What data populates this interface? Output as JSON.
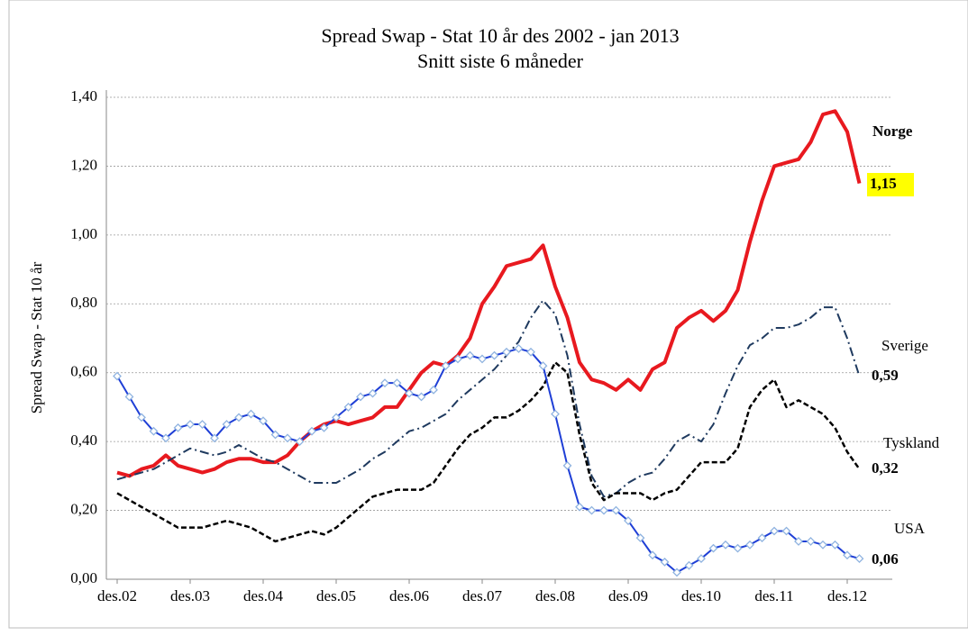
{
  "chart_data": {
    "type": "line",
    "title": "Spread Swap - Stat 10 år   des 2002 - jan 2013",
    "subtitle": "Snitt siste 6 måneder",
    "y_label": "Spread Swap - Stat 10 år",
    "categories": [
      "des.02",
      null,
      null,
      null,
      null,
      null,
      "des.03",
      null,
      null,
      null,
      null,
      null,
      "des.04",
      null,
      null,
      null,
      null,
      null,
      "des.05",
      null,
      null,
      null,
      null,
      null,
      "des.06",
      null,
      null,
      null,
      null,
      null,
      "des.07",
      null,
      null,
      null,
      null,
      null,
      "des.08",
      null,
      null,
      null,
      null,
      null,
      "des.09",
      null,
      null,
      null,
      null,
      null,
      "des.10",
      null,
      null,
      null,
      null,
      null,
      "des.11",
      null,
      null,
      null,
      null,
      null,
      "des.12",
      null
    ],
    "ylim": [
      0,
      1.4
    ],
    "yticks": [
      {
        "value": 0,
        "label": "0,00"
      },
      {
        "value": 0.2,
        "label": "0,20"
      },
      {
        "value": 0.4,
        "label": "0,40"
      },
      {
        "value": 0.6,
        "label": "0,60"
      },
      {
        "value": 0.8,
        "label": "0,80"
      },
      {
        "value": 1.0,
        "label": "1,00"
      },
      {
        "value": 1.2,
        "label": "1,20"
      },
      {
        "value": 1.4,
        "label": "1,40"
      }
    ],
    "grid": true,
    "series": [
      {
        "name": "Norge",
        "color": "#e8191f",
        "style": "solid",
        "values": [
          0.31,
          0.3,
          0.32,
          0.33,
          0.36,
          0.33,
          0.32,
          0.31,
          0.32,
          0.34,
          0.35,
          0.35,
          0.34,
          0.34,
          0.36,
          0.4,
          0.43,
          0.45,
          0.46,
          0.45,
          0.46,
          0.47,
          0.5,
          0.5,
          0.55,
          0.6,
          0.63,
          0.62,
          0.65,
          0.7,
          0.8,
          0.85,
          0.91,
          0.92,
          0.93,
          0.97,
          0.85,
          0.76,
          0.63,
          0.58,
          0.57,
          0.55,
          0.58,
          0.55,
          0.61,
          0.63,
          0.73,
          0.76,
          0.78,
          0.75,
          0.78,
          0.84,
          0.98,
          1.1,
          1.2,
          1.21,
          1.22,
          1.27,
          1.35,
          1.36,
          1.3,
          1.15
        ],
        "value_labels": [
          null,
          null,
          null,
          null,
          null,
          null,
          null,
          null,
          null,
          null,
          null,
          null,
          null,
          null,
          null,
          null,
          null,
          null,
          null,
          null,
          null,
          null,
          null,
          null,
          null,
          null,
          null,
          null,
          null,
          null,
          null,
          null,
          null,
          null,
          null,
          null,
          null,
          null,
          null,
          null,
          null,
          null,
          null,
          null,
          null,
          null,
          null,
          null,
          null,
          null,
          null,
          null,
          null,
          null,
          null,
          null,
          null,
          null,
          null,
          null,
          null,
          "1,15"
        ]
      },
      {
        "name": "Sverige",
        "color": "#1f3a5f",
        "style": "dashdot",
        "values": [
          0.29,
          0.3,
          0.31,
          0.32,
          0.34,
          0.36,
          0.38,
          0.37,
          0.36,
          0.37,
          0.39,
          0.37,
          0.35,
          0.34,
          0.32,
          0.3,
          0.28,
          0.28,
          0.28,
          0.3,
          0.32,
          0.35,
          0.37,
          0.4,
          0.43,
          0.44,
          0.46,
          0.48,
          0.52,
          0.55,
          0.58,
          0.61,
          0.65,
          0.69,
          0.76,
          0.81,
          0.77,
          0.65,
          0.45,
          0.3,
          0.24,
          0.25,
          0.28,
          0.3,
          0.31,
          0.35,
          0.4,
          0.42,
          0.4,
          0.45,
          0.54,
          0.62,
          0.68,
          0.7,
          0.73,
          0.73,
          0.74,
          0.76,
          0.79,
          0.79,
          0.7,
          0.59
        ],
        "value_labels": [
          null,
          null,
          null,
          null,
          null,
          null,
          null,
          null,
          null,
          null,
          null,
          null,
          null,
          null,
          null,
          null,
          null,
          null,
          null,
          null,
          null,
          null,
          null,
          null,
          null,
          null,
          null,
          null,
          null,
          null,
          null,
          null,
          null,
          null,
          null,
          null,
          null,
          null,
          null,
          null,
          null,
          null,
          null,
          null,
          null,
          null,
          null,
          null,
          null,
          null,
          null,
          null,
          null,
          null,
          null,
          null,
          null,
          null,
          null,
          null,
          null,
          "0,59"
        ]
      },
      {
        "name": "Tyskland",
        "color": "#000000",
        "style": "dashed",
        "values": [
          0.25,
          0.23,
          0.21,
          0.19,
          0.17,
          0.15,
          0.15,
          0.15,
          0.16,
          0.17,
          0.16,
          0.15,
          0.13,
          0.11,
          0.12,
          0.13,
          0.14,
          0.13,
          0.15,
          0.18,
          0.21,
          0.24,
          0.25,
          0.26,
          0.26,
          0.26,
          0.28,
          0.33,
          0.38,
          0.42,
          0.44,
          0.47,
          0.47,
          0.49,
          0.52,
          0.56,
          0.63,
          0.6,
          0.42,
          0.28,
          0.23,
          0.25,
          0.25,
          0.25,
          0.23,
          0.25,
          0.26,
          0.3,
          0.34,
          0.34,
          0.34,
          0.38,
          0.5,
          0.55,
          0.58,
          0.5,
          0.52,
          0.5,
          0.48,
          0.44,
          0.37,
          0.32
        ],
        "value_labels": [
          null,
          null,
          null,
          null,
          null,
          null,
          null,
          null,
          null,
          null,
          null,
          null,
          null,
          null,
          null,
          null,
          null,
          null,
          null,
          null,
          null,
          null,
          null,
          null,
          null,
          null,
          null,
          null,
          null,
          null,
          null,
          null,
          null,
          null,
          null,
          null,
          null,
          null,
          null,
          null,
          null,
          null,
          null,
          null,
          null,
          null,
          null,
          null,
          null,
          null,
          null,
          null,
          null,
          null,
          null,
          null,
          null,
          null,
          null,
          null,
          null,
          "0,32"
        ]
      },
      {
        "name": "USA",
        "color": "#1f3fd6",
        "style": "solid",
        "marker": "diamond",
        "values": [
          0.59,
          0.53,
          0.47,
          0.43,
          0.41,
          0.44,
          0.45,
          0.45,
          0.41,
          0.45,
          0.47,
          0.48,
          0.46,
          0.42,
          0.41,
          0.4,
          0.43,
          0.44,
          0.47,
          0.5,
          0.53,
          0.54,
          0.57,
          0.57,
          0.54,
          0.53,
          0.55,
          0.62,
          0.64,
          0.65,
          0.64,
          0.65,
          0.66,
          0.67,
          0.66,
          0.62,
          0.48,
          0.33,
          0.21,
          0.2,
          0.2,
          0.2,
          0.17,
          0.12,
          0.07,
          0.05,
          0.02,
          0.04,
          0.06,
          0.09,
          0.1,
          0.09,
          0.1,
          0.12,
          0.14,
          0.14,
          0.11,
          0.11,
          0.1,
          0.1,
          0.07,
          0.06
        ],
        "value_labels": [
          null,
          null,
          null,
          null,
          null,
          null,
          null,
          null,
          null,
          null,
          null,
          null,
          null,
          null,
          null,
          null,
          null,
          null,
          null,
          null,
          null,
          null,
          null,
          null,
          null,
          null,
          null,
          null,
          null,
          null,
          null,
          null,
          null,
          null,
          null,
          null,
          null,
          null,
          null,
          null,
          null,
          null,
          null,
          null,
          null,
          null,
          null,
          null,
          null,
          null,
          null,
          null,
          null,
          null,
          null,
          null,
          null,
          null,
          null,
          null,
          null,
          "0,06"
        ]
      }
    ]
  }
}
